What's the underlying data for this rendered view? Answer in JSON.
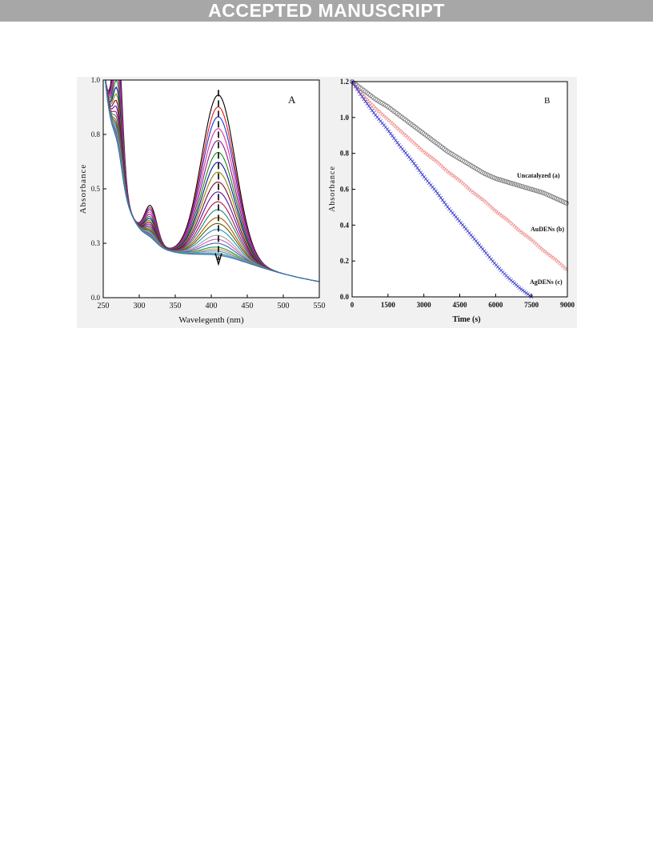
{
  "banner": {
    "text": "ACCEPTED MANUSCRIPT"
  },
  "chart_data": [
    {
      "panel_label": "A",
      "type": "line",
      "xlabel": "Wavelegenth (nm)",
      "ylabel": "Absorbance",
      "xlim": [
        250,
        550
      ],
      "ylim": [
        0.0,
        1.1
      ],
      "xticks": [
        250,
        300,
        350,
        400,
        450,
        500,
        550
      ],
      "xtick_labels": [
        "250",
        "300",
        "350",
        "400",
        "450",
        "500",
        "550"
      ],
      "yticks": [
        0.0,
        0.275,
        0.55,
        0.825,
        1.1
      ],
      "ytick_labels": [
        "0.0",
        "0.3",
        "0.5",
        "0.8",
        "1.0"
      ],
      "annotation": "arrow at 410 nm pointing down: peak absorbance decreases with time",
      "peak_wavelength": 410,
      "series_peak_values_at_410nm": [
        1.06,
        1.0,
        0.95,
        0.89,
        0.83,
        0.77,
        0.72,
        0.67,
        0.62,
        0.57,
        0.52,
        0.48,
        0.44,
        0.41,
        0.38,
        0.35,
        0.33,
        0.31,
        0.29,
        0.28,
        0.27,
        0.26,
        0.255,
        0.25
      ],
      "series_colors": [
        "#000000",
        "#e41a1c",
        "#2233dd",
        "#e0309a",
        "#8a1e7c",
        "#1a8a1a",
        "#1010a0",
        "#8a8a00",
        "#7a0a2a",
        "#5a10a0",
        "#b01050",
        "#1a8a80",
        "#aa5500",
        "#606000",
        "#2090c0",
        "#a0a0a0",
        "#c060c0",
        "#4060a0",
        "#20a060",
        "#c0a040",
        "#6080c0",
        "#40b0b0",
        "#80a0c0",
        "#3070b0"
      ]
    },
    {
      "panel_label": "B",
      "type": "scatter",
      "xlabel": "Time (s)",
      "ylabel": "Absorbance",
      "xlim": [
        0,
        9000
      ],
      "ylim": [
        0.0,
        1.2
      ],
      "xticks": [
        0,
        1500,
        3000,
        4500,
        6000,
        7500,
        9000
      ],
      "xtick_labels": [
        "0",
        "1500",
        "3000",
        "4500",
        "6000",
        "7500",
        "9000"
      ],
      "yticks": [
        0.0,
        0.2,
        0.4,
        0.6,
        0.8,
        1.0,
        1.2
      ],
      "ytick_labels": [
        "0.0",
        "0.2",
        "0.4",
        "0.6",
        "0.8",
        "1.0",
        "1.2"
      ],
      "series": [
        {
          "name": "Uncatalyzed (a)",
          "color": "#777777",
          "marker": "circle",
          "x": [
            0,
            500,
            1000,
            1500,
            2000,
            2500,
            3000,
            3500,
            4000,
            4500,
            5000,
            5500,
            6000,
            6500,
            7000,
            7500,
            8000,
            8500,
            9000
          ],
          "y": [
            1.2,
            1.15,
            1.1,
            1.06,
            1.01,
            0.96,
            0.91,
            0.86,
            0.81,
            0.77,
            0.73,
            0.69,
            0.66,
            0.64,
            0.62,
            0.6,
            0.58,
            0.55,
            0.52
          ]
        },
        {
          "name": "AuDENs (b)",
          "color": "#f08888",
          "marker": "triangle",
          "x": [
            0,
            500,
            1000,
            1500,
            2000,
            2500,
            3000,
            3500,
            4000,
            4500,
            5000,
            5500,
            6000,
            6500,
            7000,
            7500,
            8000,
            8500,
            9000
          ],
          "y": [
            1.2,
            1.12,
            1.05,
            0.99,
            0.93,
            0.87,
            0.81,
            0.76,
            0.7,
            0.65,
            0.59,
            0.54,
            0.48,
            0.43,
            0.37,
            0.32,
            0.26,
            0.21,
            0.15
          ]
        },
        {
          "name": "AgDENs (c)",
          "color": "#2828c8",
          "marker": "cross",
          "x": [
            0,
            500,
            1000,
            1500,
            2000,
            2500,
            3000,
            3500,
            4000,
            4500,
            5000,
            5500,
            6000,
            6500,
            7000,
            7500
          ],
          "y": [
            1.2,
            1.1,
            1.01,
            0.93,
            0.84,
            0.76,
            0.67,
            0.59,
            0.5,
            0.42,
            0.34,
            0.26,
            0.18,
            0.11,
            0.05,
            0.0
          ]
        }
      ]
    }
  ]
}
